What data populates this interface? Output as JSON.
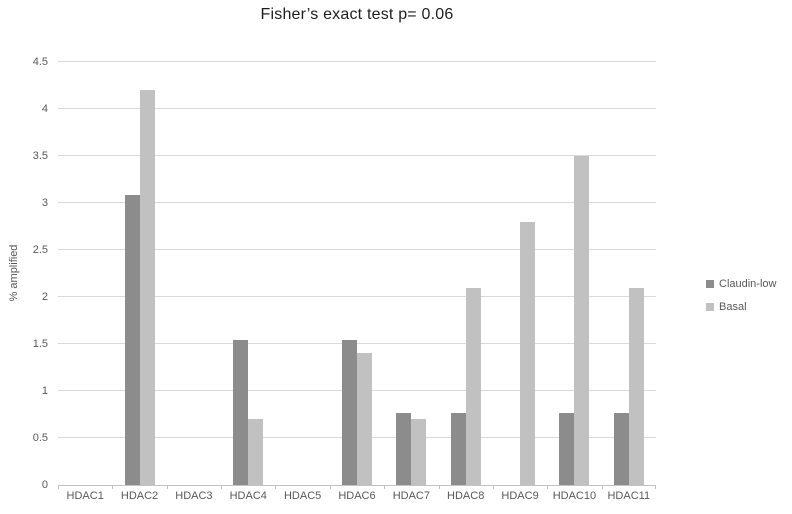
{
  "title": "Fisher’s exact test p= 0.06",
  "colors": {
    "background": "#ffffff",
    "title_text": "#1f1f1f",
    "axis_text": "#595959",
    "gridline": "#d9d9d9",
    "axis_line": "#c3c3c3",
    "claudin_low": "#8c8c8c",
    "basal": "#c1c1c1"
  },
  "chart_data": {
    "type": "bar",
    "title": "Fisher’s exact test p= 0.06",
    "xlabel": "",
    "ylabel": "% amplified",
    "categories": [
      "HDAC1",
      "HDAC2",
      "HDAC3",
      "HDAC4",
      "HDAC5",
      "HDAC6",
      "HDAC7",
      "HDAC8",
      "HDAC9",
      "HDAC10",
      "HDAC11"
    ],
    "series": [
      {
        "name": "Claudin-low",
        "color": "#8c8c8c",
        "values": [
          0,
          3.08,
          0,
          1.54,
          0,
          1.54,
          0.77,
          0.77,
          0,
          0.77,
          0.77
        ]
      },
      {
        "name": "Basal",
        "color": "#c1c1c1",
        "values": [
          0,
          4.2,
          0,
          0.7,
          0,
          1.4,
          0.7,
          2.1,
          2.8,
          3.5,
          2.1
        ]
      }
    ],
    "ylim": [
      0,
      4.5
    ],
    "ytick_step": 0.5,
    "yticks": [
      "0",
      "0.5",
      "1",
      "1.5",
      "2",
      "2.5",
      "3",
      "3.5",
      "4",
      "4.5"
    ],
    "grid": true,
    "legend_position": "right"
  }
}
